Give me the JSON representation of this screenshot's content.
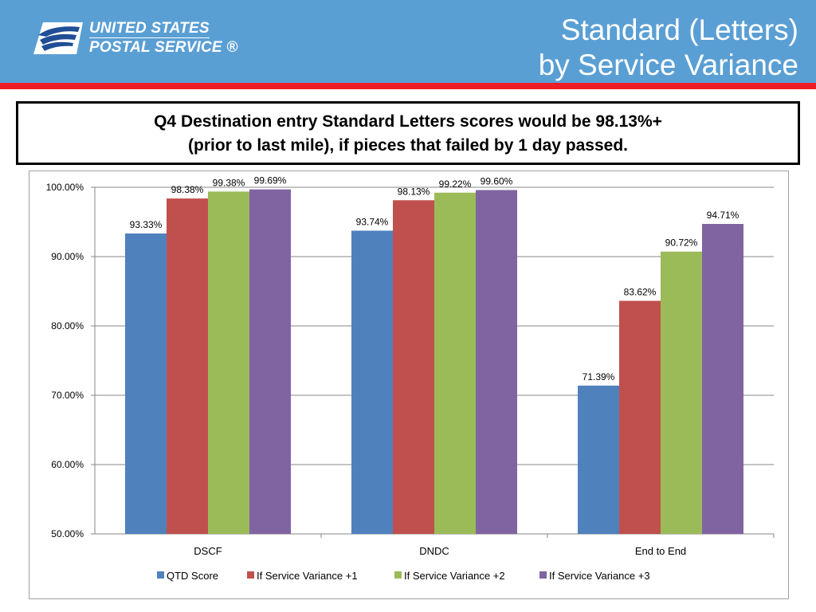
{
  "logo": {
    "line1": "UNITED STATES",
    "line2": "POSTAL SERVICE ®"
  },
  "title": {
    "line1": "Standard (Letters)",
    "line2": "by Service Variance"
  },
  "callout": {
    "line1": "Q4 Destination entry Standard Letters scores would be 98.13%+",
    "line2": "(prior to last mile), if pieces that failed by 1 day passed."
  },
  "colors": {
    "header": "#5a9fd4",
    "stripe": "#ee1c25",
    "series": [
      "#4f81bd",
      "#c0504d",
      "#9bbb59",
      "#8064a2"
    ]
  },
  "chart_data": {
    "type": "bar",
    "categories": [
      "DSCF",
      "DNDC",
      "End to End"
    ],
    "series": [
      {
        "name": "QTD Score",
        "values": [
          93.33,
          93.74,
          71.39
        ],
        "labels": [
          "93.33%",
          "93.74%",
          "71.39%"
        ]
      },
      {
        "name": "If Service Variance +1",
        "values": [
          98.38,
          98.13,
          83.62
        ],
        "labels": [
          "98.38%",
          "98.13%",
          "83.62%"
        ]
      },
      {
        "name": "If Service Variance +2",
        "values": [
          99.38,
          99.22,
          90.72
        ],
        "labels": [
          "99.38%",
          "99.22%",
          "90.72%"
        ]
      },
      {
        "name": "If Service Variance +3",
        "values": [
          99.69,
          99.6,
          94.71
        ],
        "labels": [
          "99.69%",
          "99.60%",
          "94.71%"
        ]
      }
    ],
    "ylim": [
      50,
      100
    ],
    "yticks": [
      "50.00%",
      "60.00%",
      "70.00%",
      "80.00%",
      "90.00%",
      "100.00%"
    ],
    "grid": true,
    "legend": "bottom",
    "title": "",
    "xlabel": "",
    "ylabel": ""
  }
}
